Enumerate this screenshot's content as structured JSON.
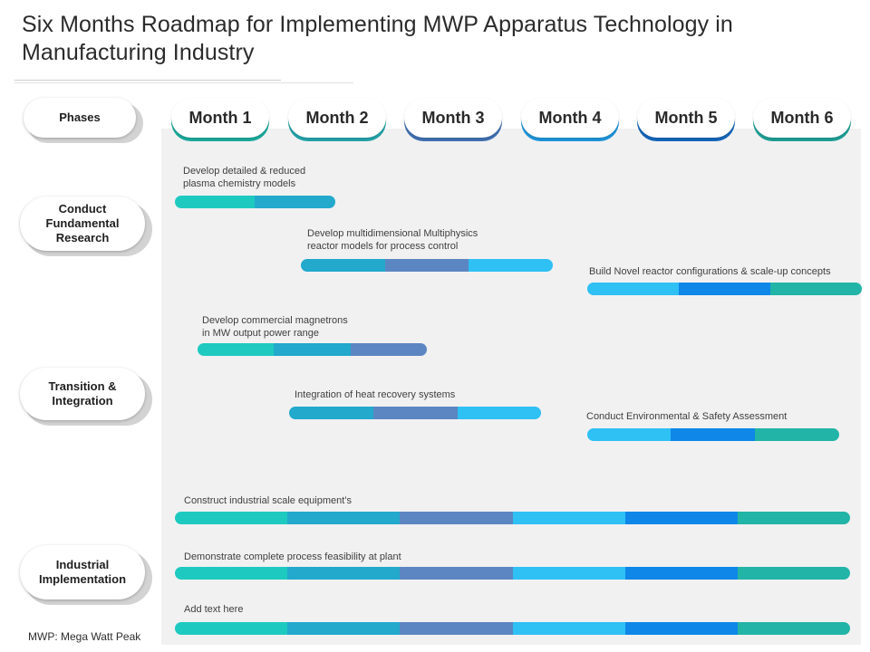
{
  "title": "Six Months Roadmap for Implementing MWP Apparatus Technology in Manufacturing Industry",
  "colors": {
    "month_underlays": [
      "#1ba89a",
      "#23a1a8",
      "#3f6fb0",
      "#1e93d8",
      "#1565b8",
      "#1e9e94"
    ],
    "segments": {
      "teal": "#1ecac0",
      "cyan_blue": "#22a9cc",
      "slate_blue": "#5c86c2",
      "sky": "#2fc0f4",
      "blue": "#0e87e8",
      "jade": "#22b4a6"
    }
  },
  "months": [
    "Month 1",
    "Month 2",
    "Month 3",
    "Month 4",
    "Month 5",
    "Month 6"
  ],
  "phases": [
    {
      "label": "Phases"
    },
    {
      "label": "Conduct Fundamental Research"
    },
    {
      "label": "Transition & Integration"
    },
    {
      "label": "Industrial Implementation"
    }
  ],
  "tasks": [
    {
      "label_lines": [
        "Develop detailed & reduced",
        "plasma chemistry models"
      ],
      "start_month": 1,
      "end_month": 2.4,
      "segments": [
        "teal",
        "cyan_blue"
      ]
    },
    {
      "label_lines": [
        "Develop multidimensional  Multiphysics",
        "reactor models for process control"
      ],
      "start_month": 2.1,
      "end_month": 4.3,
      "segments": [
        "cyan_blue",
        "slate_blue",
        "sky"
      ]
    },
    {
      "label_lines": [
        "Build Novel reactor configurations  & scale-up concepts"
      ],
      "start_month": 4.6,
      "end_month": 7,
      "segments": [
        "sky",
        "blue",
        "jade"
      ]
    },
    {
      "label_lines": [
        "Develop commercial magnetrons",
        "in MW output power range"
      ],
      "start_month": 1.2,
      "end_month": 3.2,
      "segments": [
        "teal",
        "cyan_blue",
        "slate_blue"
      ]
    },
    {
      "label_lines": [
        "Integration of heat recovery systems"
      ],
      "start_month": 2,
      "end_month": 4.2,
      "segments": [
        "cyan_blue",
        "slate_blue",
        "sky"
      ]
    },
    {
      "label_lines": [
        "Conduct Environmental  & Safety Assessment"
      ],
      "start_month": 4.6,
      "end_month": 6.8,
      "segments": [
        "sky",
        "blue",
        "jade"
      ]
    },
    {
      "label_lines": [
        "Construct industrial scale equipment’s"
      ],
      "start_month": 1,
      "end_month": 6.9,
      "segments": [
        "teal",
        "cyan_blue",
        "slate_blue",
        "sky",
        "blue",
        "jade"
      ]
    },
    {
      "label_lines": [
        "Demonstrate complete process feasibility  at plant"
      ],
      "start_month": 1,
      "end_month": 6.9,
      "segments": [
        "teal",
        "cyan_blue",
        "slate_blue",
        "sky",
        "blue",
        "jade"
      ]
    },
    {
      "label_lines": [
        "Add text here"
      ],
      "start_month": 1,
      "end_month": 6.9,
      "segments": [
        "teal",
        "cyan_blue",
        "slate_blue",
        "sky",
        "blue",
        "jade"
      ]
    }
  ],
  "footnote": "MWP: Mega Watt Peak"
}
